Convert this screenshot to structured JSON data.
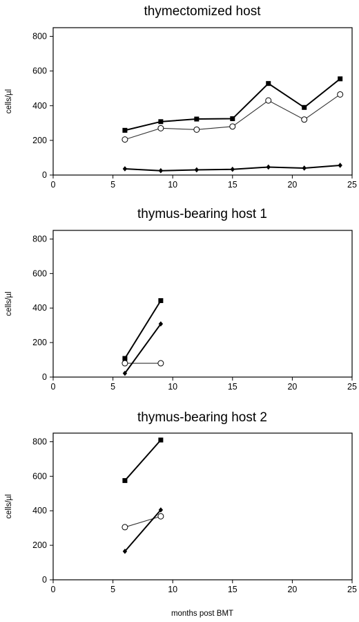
{
  "chart_data": [
    {
      "type": "line",
      "title": "thymectomized host",
      "xlabel": "",
      "ylabel": "cells/µl",
      "xlim": [
        0,
        25
      ],
      "ylim": [
        0,
        850
      ],
      "xticks": [
        0,
        5,
        10,
        15,
        20,
        25
      ],
      "yticks": [
        0,
        200,
        400,
        600,
        800
      ],
      "grid": false,
      "series": [
        {
          "marker": "square",
          "x": [
            6,
            9,
            12,
            15,
            18,
            21,
            24
          ],
          "values": [
            258,
            308,
            323,
            325,
            528,
            390,
            555
          ]
        },
        {
          "marker": "open-circle",
          "x": [
            6,
            9,
            12,
            15,
            18,
            21,
            24
          ],
          "values": [
            205,
            270,
            262,
            280,
            430,
            320,
            465
          ]
        },
        {
          "marker": "diamond",
          "x": [
            6,
            9,
            12,
            15,
            18,
            21,
            24
          ],
          "values": [
            36,
            25,
            30,
            33,
            46,
            40,
            56
          ]
        }
      ]
    },
    {
      "type": "line",
      "title": "thymus-bearing host 1",
      "xlabel": "",
      "ylabel": "cells/µl",
      "xlim": [
        0,
        25
      ],
      "ylim": [
        0,
        850
      ],
      "xticks": [
        0,
        5,
        10,
        15,
        20,
        25
      ],
      "yticks": [
        0,
        200,
        400,
        600,
        800
      ],
      "grid": false,
      "series": [
        {
          "marker": "square",
          "x": [
            6,
            9
          ],
          "values": [
            108,
            443
          ]
        },
        {
          "marker": "open-circle",
          "x": [
            6,
            9
          ],
          "values": [
            80,
            80
          ]
        },
        {
          "marker": "diamond",
          "x": [
            6,
            9
          ],
          "values": [
            22,
            308
          ]
        }
      ]
    },
    {
      "type": "line",
      "title": "thymus-bearing host 2",
      "xlabel": "months post BMT",
      "ylabel": "cells/µl",
      "xlim": [
        0,
        25
      ],
      "ylim": [
        0,
        850
      ],
      "xticks": [
        0,
        5,
        10,
        15,
        20,
        25
      ],
      "yticks": [
        0,
        200,
        400,
        600,
        800
      ],
      "grid": false,
      "series": [
        {
          "marker": "square",
          "x": [
            6,
            9
          ],
          "values": [
            575,
            810
          ]
        },
        {
          "marker": "open-circle",
          "x": [
            6,
            9
          ],
          "values": [
            305,
            368
          ]
        },
        {
          "marker": "diamond",
          "x": [
            6,
            9
          ],
          "values": [
            165,
            405
          ]
        }
      ]
    }
  ]
}
